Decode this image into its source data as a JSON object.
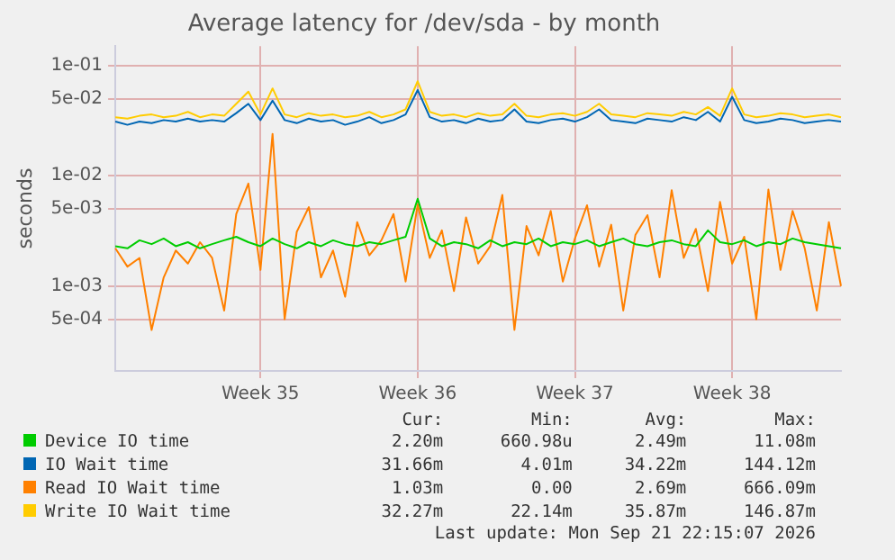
{
  "chart_data": {
    "type": "line",
    "title": "Average latency for /dev/sda - by month",
    "ylabel": "seconds",
    "log": "y",
    "grid": true,
    "legend": "bottom",
    "marker": "none",
    "line_style": "solid",
    "categories": [
      null,
      null,
      null,
      null,
      null,
      null,
      null,
      null,
      null,
      null,
      null,
      null,
      "Week 35",
      null,
      null,
      null,
      null,
      null,
      null,
      null,
      null,
      null,
      null,
      null,
      null,
      "Week 36",
      null,
      null,
      null,
      null,
      null,
      null,
      null,
      null,
      null,
      null,
      null,
      null,
      "Week 37",
      null,
      null,
      null,
      null,
      null,
      null,
      null,
      null,
      null,
      null,
      null,
      null,
      "Week 38",
      null,
      null,
      null,
      null,
      null,
      null,
      null,
      null,
      null
    ],
    "ylim": [
      0.00017,
      0.15
    ],
    "yticks": [
      {
        "value": 0.0005,
        "label": "5e-04"
      },
      {
        "value": 0.001,
        "label": "1e-03"
      },
      {
        "value": 0.005,
        "label": "5e-03"
      },
      {
        "value": 0.01,
        "label": "1e-02"
      },
      {
        "value": 0.05,
        "label": "5e-02"
      },
      {
        "value": 0.1,
        "label": "1e-01"
      }
    ],
    "series": [
      {
        "name": "Device IO time",
        "color": "#00cc00",
        "values": [
          0.0023,
          0.0022,
          0.0026,
          0.0024,
          0.0027,
          0.0023,
          0.0025,
          0.0022,
          0.0024,
          0.0026,
          0.0028,
          0.0025,
          0.0023,
          0.0027,
          0.0024,
          0.0022,
          0.0025,
          0.0023,
          0.0026,
          0.0024,
          0.0023,
          0.0025,
          0.0024,
          0.0026,
          0.0028,
          0.0062,
          0.0027,
          0.0023,
          0.0025,
          0.0024,
          0.0022,
          0.0026,
          0.0023,
          0.0025,
          0.0024,
          0.0027,
          0.0023,
          0.0025,
          0.0024,
          0.0026,
          0.0023,
          0.0025,
          0.0027,
          0.0024,
          0.0023,
          0.0025,
          0.0026,
          0.0024,
          0.0023,
          0.0032,
          0.0025,
          0.0024,
          0.0026,
          0.0023,
          0.0025,
          0.0024,
          0.0027,
          0.0025,
          0.0024,
          0.0023,
          0.0022
        ]
      },
      {
        "name": "IO Wait time",
        "color": "#0066b3",
        "values": [
          0.031,
          0.029,
          0.031,
          0.03,
          0.032,
          0.031,
          0.033,
          0.031,
          0.032,
          0.031,
          0.037,
          0.045,
          0.032,
          0.048,
          0.032,
          0.03,
          0.033,
          0.031,
          0.032,
          0.029,
          0.031,
          0.034,
          0.03,
          0.032,
          0.036,
          0.06,
          0.034,
          0.031,
          0.032,
          0.03,
          0.033,
          0.031,
          0.032,
          0.04,
          0.031,
          0.03,
          0.032,
          0.033,
          0.031,
          0.034,
          0.04,
          0.032,
          0.031,
          0.03,
          0.033,
          0.032,
          0.031,
          0.034,
          0.032,
          0.038,
          0.031,
          0.052,
          0.032,
          0.03,
          0.031,
          0.033,
          0.032,
          0.03,
          0.031,
          0.032,
          0.031
        ]
      },
      {
        "name": "Read IO Wait time",
        "color": "#ff8000",
        "values": [
          0.0022,
          0.0015,
          0.0018,
          0.0004,
          0.0012,
          0.0021,
          0.0016,
          0.0025,
          0.0018,
          0.0006,
          0.0045,
          0.0085,
          0.0014,
          0.024,
          0.0005,
          0.0031,
          0.0052,
          0.0012,
          0.0021,
          0.0008,
          0.0038,
          0.0019,
          0.0026,
          0.0045,
          0.0011,
          0.0055,
          0.0018,
          0.0032,
          0.0009,
          0.0042,
          0.0016,
          0.0023,
          0.0067,
          0.0004,
          0.0035,
          0.0019,
          0.0048,
          0.0011,
          0.0027,
          0.0054,
          0.0015,
          0.0036,
          0.0006,
          0.0029,
          0.0044,
          0.0012,
          0.0074,
          0.0018,
          0.0033,
          0.0009,
          0.0058,
          0.0016,
          0.0028,
          0.0005,
          0.0075,
          0.0014,
          0.0048,
          0.0022,
          0.0006,
          0.0038,
          0.001
        ]
      },
      {
        "name": "Write IO Wait time",
        "color": "#ffcc00",
        "values": [
          0.034,
          0.033,
          0.035,
          0.036,
          0.034,
          0.035,
          0.038,
          0.034,
          0.036,
          0.035,
          0.045,
          0.058,
          0.036,
          0.062,
          0.036,
          0.034,
          0.037,
          0.035,
          0.036,
          0.034,
          0.035,
          0.038,
          0.034,
          0.036,
          0.04,
          0.072,
          0.038,
          0.035,
          0.036,
          0.034,
          0.037,
          0.035,
          0.036,
          0.045,
          0.035,
          0.034,
          0.036,
          0.037,
          0.035,
          0.038,
          0.045,
          0.036,
          0.035,
          0.034,
          0.037,
          0.036,
          0.035,
          0.038,
          0.036,
          0.042,
          0.035,
          0.062,
          0.036,
          0.034,
          0.035,
          0.037,
          0.036,
          0.034,
          0.035,
          0.036,
          0.034
        ]
      }
    ],
    "annotations": [
      "Cur:",
      "Min:",
      "Avg:",
      "Max:",
      "2.20m",
      "660.98u",
      "2.49m",
      "11.08m",
      "31.66m",
      "4.01m",
      "34.22m",
      "144.12m",
      "1.03m",
      "0.00",
      "2.69m",
      "666.09m",
      "32.27m",
      "22.14m",
      "35.87m",
      "146.87m",
      "Last update: Mon Sep 21 22:15:07 2026"
    ]
  }
}
